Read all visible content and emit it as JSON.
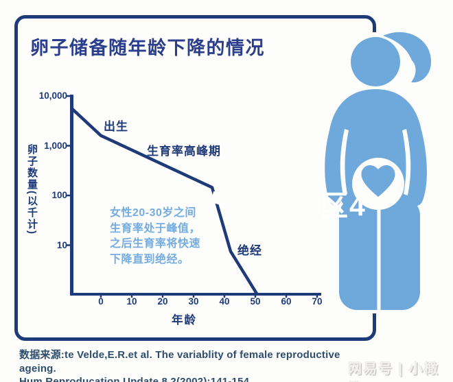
{
  "title": "卵子储备随年龄下降的情况",
  "chart_data": {
    "type": "line",
    "title": "卵子储备随年龄下降的情况",
    "xlabel": "年龄",
    "ylabel": "卵子数量(以千计)",
    "y_scale": "log",
    "xlim": [
      -10,
      70
    ],
    "ylim": [
      1,
      10000
    ],
    "x_ticks": [
      "0",
      "10",
      "20",
      "30",
      "40",
      "50",
      "60",
      "70"
    ],
    "y_ticks": [
      "10,000",
      "1,000",
      "100",
      "10"
    ],
    "grid": "off",
    "series": [
      {
        "name": "卵子数量(千)",
        "points": [
          [
            -9.4,
            5600
          ],
          [
            0,
            1600
          ],
          [
            36,
            145
          ],
          [
            42,
            7.5
          ],
          [
            50.5,
            1.05
          ]
        ]
      }
    ],
    "annotations": [
      {
        "label": "出生",
        "at_age": 0
      },
      {
        "label": "生育率高峰期",
        "at_age": 20
      },
      {
        "label": "绝经",
        "at_age": 48
      }
    ],
    "note": "女性20-30岁之间\n生育率处于峰值，\n之后生育率将快速\n下降直到绝经。"
  },
  "source": {
    "line1": "数据来源:te Velde,E.R.et al. The variablity of female reproductive ageing.",
    "line2": "Hum Reproducation Update 8.2(2002):141-154"
  },
  "watermarks": {
    "overlay": "区4",
    "publisher": "网易号 | 小橄榄"
  },
  "colors": {
    "navy": "#1e3a78",
    "title_navy": "#2b3e8c",
    "figure_blue": "#6fa9dc",
    "note_blue": "#74ace0",
    "source_blue": "#2e4d6d"
  }
}
